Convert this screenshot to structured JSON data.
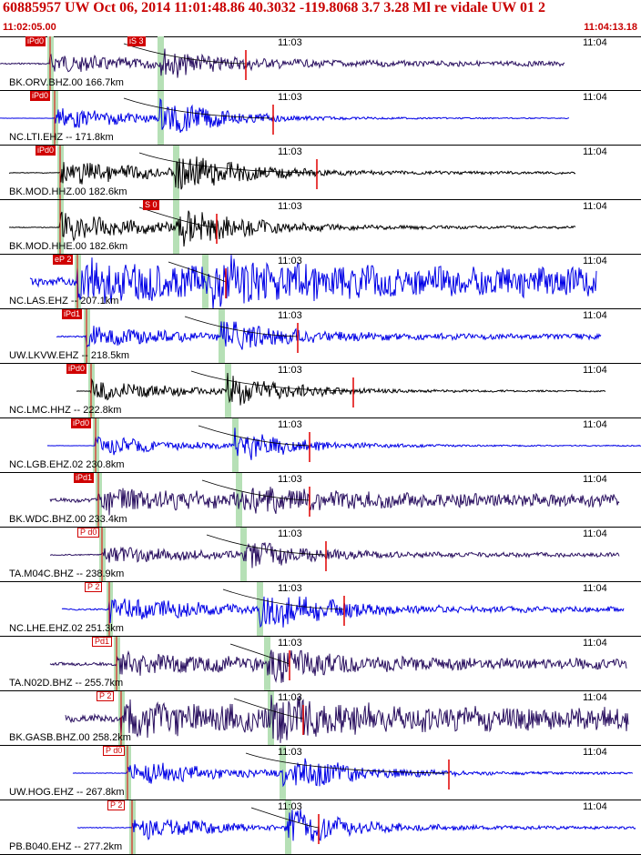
{
  "header": {
    "title": "60885957 UW Oct 06, 2014 11:01:48.86   40.3032 -119.8068  3.7 3.28 Ml re vidale UW 01   2",
    "start_time": "11:02:05.00",
    "end_time": "11:04:13.18"
  },
  "tick_labels": {
    "mid": "11:03",
    "end": "11:04"
  },
  "colors": {
    "blue": "#0000e6",
    "navy": "#2a1060",
    "black": "#000000",
    "red": "#e00000",
    "green_band": "#b6e0b6",
    "header_red": "#c80000"
  },
  "traces": [
    {
      "station": "BK.ORV.BHZ.00 166.7km",
      "pick": "iPd0",
      "pick2": "iS 3",
      "color": "navy",
      "amp": 0.55,
      "noise": 0.1
    },
    {
      "station": "NC.LTI.EHZ -- 171.8km",
      "pick": "iPd0",
      "pick2": "",
      "color": "blue",
      "amp": 0.75,
      "noise": 0.02
    },
    {
      "station": "BK.MOD.HHZ.00 182.6km",
      "pick": "iPd0",
      "pick2": "",
      "color": "black",
      "amp": 0.85,
      "noise": 0.05
    },
    {
      "station": "BK.MOD.HHE.00 182.6km",
      "pick": "",
      "pick2": "S 0",
      "color": "black",
      "amp": 0.9,
      "noise": 0.05
    },
    {
      "station": "NC.LAS.EHZ -- 207.1km",
      "pick": "eP 2",
      "pick2": "",
      "color": "blue",
      "amp": 0.9,
      "noise": 0.55
    },
    {
      "station": "UW.LKVW.EHZ -- 218.5km",
      "pick": "iPd1",
      "pick2": "",
      "color": "blue",
      "amp": 0.6,
      "noise": 0.1
    },
    {
      "station": "NC.LMC.HHZ -- 222.8km",
      "pick": "iPd0",
      "pick2": "",
      "color": "black",
      "amp": 0.7,
      "noise": 0.03
    },
    {
      "station": "NC.LGB.EHZ.02 230.8km",
      "pick": "iPd0",
      "pick2": "",
      "color": "blue",
      "amp": 0.65,
      "noise": 0.02
    },
    {
      "station": "BK.WDC.BHZ.00 233.4km",
      "pick": "iPd1",
      "pick2": "",
      "color": "navy",
      "amp": 0.55,
      "noise": 0.25
    },
    {
      "station": "TA.M04C.BHZ -- 238.9km",
      "pick": "P d0",
      "pick2": "",
      "color": "navy",
      "amp": 0.55,
      "noise": 0.08
    },
    {
      "station": "NC.LHE.EHZ.02 251.3km",
      "pick": "P 2",
      "pick2": "",
      "color": "blue",
      "amp": 0.8,
      "noise": 0.1
    },
    {
      "station": "TA.N02D.BHZ -- 255.7km",
      "pick": "Pd1",
      "pick2": "",
      "color": "navy",
      "amp": 0.6,
      "noise": 0.2
    },
    {
      "station": "BK.GASB.BHZ.00 258.2km",
      "pick": "P 2",
      "pick2": "",
      "color": "navy",
      "amp": 0.6,
      "noise": 0.45
    },
    {
      "station": "UW.HOG.EHZ -- 267.8km",
      "pick": "P d0",
      "pick2": "",
      "color": "blue",
      "amp": 0.85,
      "noise": 0.04
    },
    {
      "station": "PB.B040.EHZ -- 277.2km",
      "pick": "P 2",
      "pick2": "",
      "color": "blue",
      "amp": 0.75,
      "noise": 0.05
    }
  ]
}
